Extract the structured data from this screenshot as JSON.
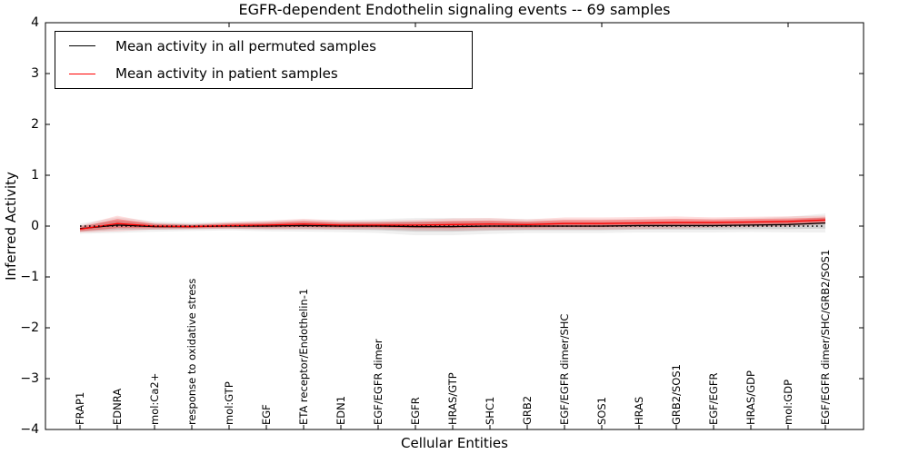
{
  "figure": {
    "title": "EGFR-dependent Endothelin signaling events -- 69 samples",
    "xlabel": "Cellular Entities",
    "ylabel": "Inferred Activity"
  },
  "legend": {
    "position": "upper left",
    "items": [
      {
        "label": "Mean activity in all permuted samples",
        "color": "#000000"
      },
      {
        "label": "Mean activity in patient samples",
        "color": "#ff0000"
      }
    ]
  },
  "chart_data": {
    "type": "line",
    "title": "EGFR-dependent Endothelin signaling events -- 69 samples",
    "xlabel": "Cellular Entities",
    "ylabel": "Inferred Activity",
    "ylim": [
      -4,
      4
    ],
    "yticks": [
      4,
      3,
      2,
      1,
      0,
      -1,
      -2,
      -3,
      -4
    ],
    "grid": false,
    "legend_position": "upper left",
    "categories": [
      "FRAP1",
      "EDNRA",
      "mol:Ca2+",
      "response to oxidative stress",
      "mol:GTP",
      "EGF",
      "ETA receptor/Endothelin-1",
      "EDN1",
      "EGF/EGFR dimer",
      "EGFR",
      "HRAS/GTP",
      "SHC1",
      "GRB2",
      "EGF/EGFR dimer/SHC",
      "SOS1",
      "HRAS",
      "GRB2/SOS1",
      "EGF/EGFR",
      "HRAS/GDP",
      "mol:GDP",
      "EGF/EGFR dimer/SHC/GRB2/SOS1"
    ],
    "series": [
      {
        "name": "Mean activity in all permuted samples",
        "color": "#000000",
        "band_opacity_inner": 0.12,
        "band_opacity_outer": 0.06,
        "values": [
          -0.05,
          0.02,
          -0.01,
          -0.01,
          0.0,
          0.0,
          0.01,
          0.0,
          0.0,
          -0.01,
          -0.01,
          0.0,
          0.0,
          0.0,
          0.0,
          0.01,
          0.01,
          0.01,
          0.02,
          0.03,
          0.06
        ],
        "band_std": [
          0.06,
          0.09,
          0.06,
          0.05,
          0.05,
          0.06,
          0.07,
          0.07,
          0.08,
          0.1,
          0.1,
          0.09,
          0.08,
          0.08,
          0.08,
          0.08,
          0.08,
          0.08,
          0.08,
          0.09,
          0.11
        ]
      },
      {
        "name": "Mean activity in patient samples",
        "color": "#ff0000",
        "band_opacity_inner": 0.3,
        "band_opacity_outer": 0.13,
        "values": [
          -0.06,
          0.05,
          0.0,
          -0.01,
          0.01,
          0.02,
          0.04,
          0.02,
          0.02,
          0.02,
          0.03,
          0.04,
          0.03,
          0.05,
          0.05,
          0.06,
          0.07,
          0.07,
          0.08,
          0.09,
          0.12
        ],
        "band_std": [
          0.04,
          0.09,
          0.04,
          0.03,
          0.04,
          0.05,
          0.06,
          0.05,
          0.05,
          0.06,
          0.07,
          0.07,
          0.06,
          0.07,
          0.07,
          0.07,
          0.07,
          0.06,
          0.06,
          0.06,
          0.05
        ]
      }
    ],
    "reference_line": {
      "y": 0,
      "style": "dotted",
      "color": "#000000"
    },
    "top_tick_indices": [
      4,
      9,
      14,
      19
    ]
  }
}
